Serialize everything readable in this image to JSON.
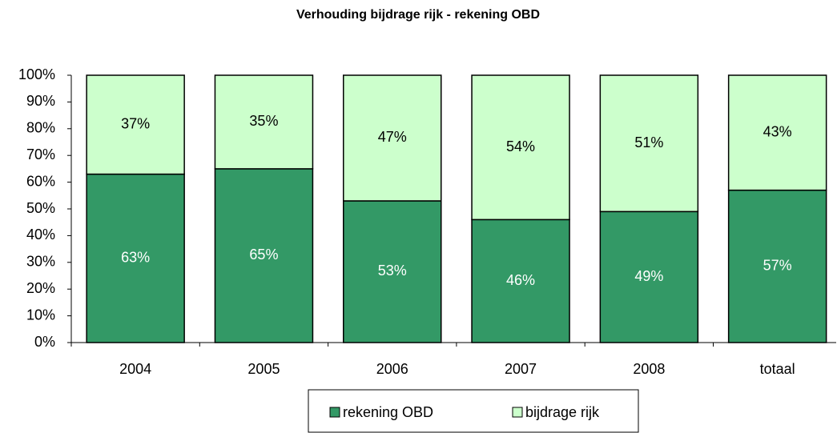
{
  "chart_data": {
    "type": "stacked_bar",
    "title": "Verhouding bijdrage rijk - rekening OBD",
    "categories": [
      "2004",
      "2005",
      "2006",
      "2007",
      "2008",
      "totaal"
    ],
    "series": [
      {
        "name": "rekening OBD",
        "color": "#339966",
        "values": [
          63,
          65,
          53,
          46,
          49,
          57
        ],
        "value_labels": [
          "63%",
          "65%",
          "53%",
          "46%",
          "49%",
          "57%"
        ]
      },
      {
        "name": "bijdrage rijk",
        "color": "#ccffcc",
        "values": [
          37,
          35,
          47,
          54,
          51,
          43
        ],
        "value_labels": [
          "37%",
          "35%",
          "47%",
          "54%",
          "51%",
          "43%"
        ]
      }
    ],
    "ylim": [
      0,
      100
    ],
    "yticks": [
      {
        "value": 0,
        "label": "0%"
      },
      {
        "value": 10,
        "label": "10%"
      },
      {
        "value": 20,
        "label": "20%"
      },
      {
        "value": 30,
        "label": "30%"
      },
      {
        "value": 40,
        "label": "40%"
      },
      {
        "value": 50,
        "label": "50%"
      },
      {
        "value": 60,
        "label": "60%"
      },
      {
        "value": 70,
        "label": "70%"
      },
      {
        "value": 80,
        "label": "80%"
      },
      {
        "value": 90,
        "label": "90%"
      },
      {
        "value": 100,
        "label": "100%"
      }
    ],
    "legend": "bottom"
  }
}
